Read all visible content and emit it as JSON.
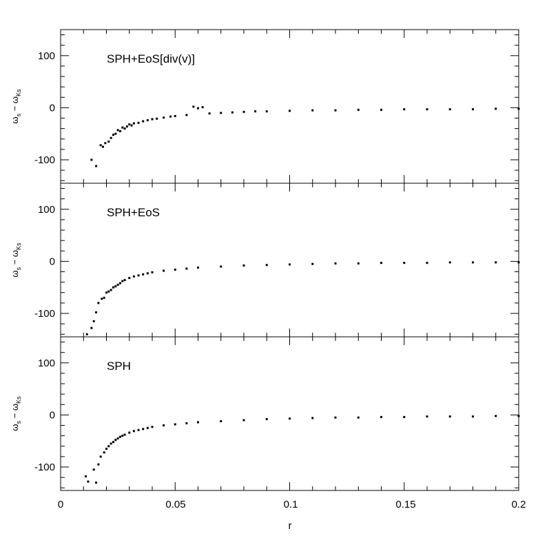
{
  "chart_data": {
    "type": "scatter",
    "xlabel": "r",
    "ylabel": "ω_s − ω_Ks",
    "ylabel_main": "ω",
    "ylabel_sub1": "s",
    "ylabel_dash": "−",
    "ylabel_main2": "ω",
    "ylabel_sub2": "Ks",
    "xlim": [
      0,
      0.2
    ],
    "ylim": [
      -145,
      150
    ],
    "xticks": [
      0,
      0.05,
      0.1,
      0.15,
      0.2
    ],
    "xtick_labels": [
      "0",
      "0.05",
      "0.1",
      "0.15",
      "0.2"
    ],
    "yticks": [
      100,
      0,
      -100
    ],
    "ytick_labels": [
      "100",
      "0",
      "-100"
    ],
    "grid": false,
    "panels": [
      {
        "label": "SPH+EoS[div(v)]",
        "points": [
          [
            0.0135,
            -100
          ],
          [
            0.0155,
            -112
          ],
          [
            0.0175,
            -72
          ],
          [
            0.0185,
            -75
          ],
          [
            0.0195,
            -68
          ],
          [
            0.021,
            -65
          ],
          [
            0.022,
            -58
          ],
          [
            0.023,
            -52
          ],
          [
            0.024,
            -50
          ],
          [
            0.025,
            -43
          ],
          [
            0.026,
            -45
          ],
          [
            0.027,
            -38
          ],
          [
            0.028,
            -40
          ],
          [
            0.029,
            -36
          ],
          [
            0.03,
            -32
          ],
          [
            0.031,
            -34
          ],
          [
            0.032,
            -30
          ],
          [
            0.034,
            -29
          ],
          [
            0.036,
            -26
          ],
          [
            0.038,
            -24
          ],
          [
            0.04,
            -22
          ],
          [
            0.042,
            -21
          ],
          [
            0.045,
            -19
          ],
          [
            0.048,
            -17
          ],
          [
            0.05,
            -16
          ],
          [
            0.055,
            -14
          ],
          [
            0.058,
            2
          ],
          [
            0.06,
            -1
          ],
          [
            0.062,
            1
          ],
          [
            0.065,
            -11
          ],
          [
            0.07,
            -10
          ],
          [
            0.075,
            -9
          ],
          [
            0.08,
            -8
          ],
          [
            0.085,
            -7
          ],
          [
            0.09,
            -7
          ],
          [
            0.1,
            -6
          ],
          [
            0.11,
            -5
          ],
          [
            0.12,
            -5
          ],
          [
            0.13,
            -4
          ],
          [
            0.14,
            -4
          ],
          [
            0.15,
            -3
          ],
          [
            0.16,
            -3
          ],
          [
            0.17,
            -3
          ],
          [
            0.18,
            -3
          ],
          [
            0.19,
            -2
          ],
          [
            0.2,
            -2
          ]
        ]
      },
      {
        "label": "SPH+EoS",
        "points": [
          [
            0.0115,
            -140
          ],
          [
            0.0135,
            -128
          ],
          [
            0.0145,
            -115
          ],
          [
            0.0155,
            -98
          ],
          [
            0.0165,
            -80
          ],
          [
            0.018,
            -72
          ],
          [
            0.019,
            -70
          ],
          [
            0.02,
            -60
          ],
          [
            0.021,
            -58
          ],
          [
            0.022,
            -55
          ],
          [
            0.023,
            -50
          ],
          [
            0.024,
            -48
          ],
          [
            0.025,
            -45
          ],
          [
            0.026,
            -42
          ],
          [
            0.027,
            -38
          ],
          [
            0.028,
            -36
          ],
          [
            0.03,
            -32
          ],
          [
            0.032,
            -29
          ],
          [
            0.034,
            -27
          ],
          [
            0.036,
            -25
          ],
          [
            0.038,
            -23
          ],
          [
            0.04,
            -21
          ],
          [
            0.045,
            -18
          ],
          [
            0.05,
            -16
          ],
          [
            0.055,
            -14
          ],
          [
            0.06,
            -12
          ],
          [
            0.07,
            -10
          ],
          [
            0.08,
            -8
          ],
          [
            0.09,
            -7
          ],
          [
            0.1,
            -6
          ],
          [
            0.11,
            -5
          ],
          [
            0.12,
            -4
          ],
          [
            0.13,
            -4
          ],
          [
            0.14,
            -3
          ],
          [
            0.15,
            -3
          ],
          [
            0.16,
            -3
          ],
          [
            0.17,
            -2
          ],
          [
            0.18,
            -2
          ],
          [
            0.19,
            -2
          ],
          [
            0.2,
            -2
          ]
        ]
      },
      {
        "label": "SPH",
        "points": [
          [
            0.011,
            -118
          ],
          [
            0.012,
            -128
          ],
          [
            0.0145,
            -105
          ],
          [
            0.0155,
            -130
          ],
          [
            0.0165,
            -95
          ],
          [
            0.0175,
            -80
          ],
          [
            0.019,
            -72
          ],
          [
            0.02,
            -65
          ],
          [
            0.021,
            -60
          ],
          [
            0.022,
            -55
          ],
          [
            0.023,
            -52
          ],
          [
            0.024,
            -48
          ],
          [
            0.025,
            -45
          ],
          [
            0.026,
            -42
          ],
          [
            0.027,
            -40
          ],
          [
            0.028,
            -38
          ],
          [
            0.03,
            -34
          ],
          [
            0.032,
            -31
          ],
          [
            0.034,
            -29
          ],
          [
            0.036,
            -27
          ],
          [
            0.038,
            -25
          ],
          [
            0.04,
            -23
          ],
          [
            0.045,
            -20
          ],
          [
            0.05,
            -18
          ],
          [
            0.055,
            -16
          ],
          [
            0.06,
            -14
          ],
          [
            0.07,
            -12
          ],
          [
            0.08,
            -10
          ],
          [
            0.09,
            -8
          ],
          [
            0.1,
            -7
          ],
          [
            0.11,
            -6
          ],
          [
            0.12,
            -5
          ],
          [
            0.13,
            -5
          ],
          [
            0.14,
            -4
          ],
          [
            0.15,
            -4
          ],
          [
            0.16,
            -3
          ],
          [
            0.17,
            -3
          ],
          [
            0.18,
            -3
          ],
          [
            0.19,
            -2
          ],
          [
            0.2,
            -2
          ]
        ]
      }
    ]
  }
}
